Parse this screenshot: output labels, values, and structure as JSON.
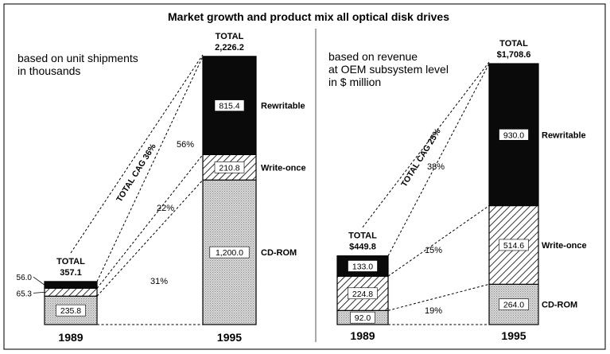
{
  "title": "Market growth and product mix all optical disk drives",
  "colors": {
    "rewritable": "#0a0a0a",
    "write_once_hatch": "#000000",
    "cdrom_dots": "#cfcfcf",
    "background": "#ffffff"
  },
  "chart_data": [
    {
      "type": "bar",
      "stacked": true,
      "note": "based on unit shipments in thousands",
      "note_lines": [
        "based on unit shipments",
        "in thousands"
      ],
      "categories": [
        "1989",
        "1995"
      ],
      "series": [
        {
          "name": "CD-ROM",
          "values": [
            235.8,
            1200.0
          ],
          "labels": [
            "235.8",
            "1,200.0"
          ]
        },
        {
          "name": "Write-once",
          "values": [
            65.3,
            210.8
          ],
          "labels": [
            "65.3",
            "210.8"
          ]
        },
        {
          "name": "Rewritable",
          "values": [
            56.0,
            815.4
          ],
          "labels": [
            "56.0",
            "815.4"
          ]
        }
      ],
      "totals": [
        357.1,
        2226.2
      ],
      "total_label": "TOTAL",
      "total_texts": [
        "357.1",
        "2,226.2"
      ],
      "growth_label": "TOTAL CAG 36%",
      "segment_growth": [
        {
          "series": "Rewritable",
          "label": "56%"
        },
        {
          "series": "Write-once",
          "label": "22%"
        },
        {
          "series": "CD-ROM",
          "label": "31%"
        }
      ]
    },
    {
      "type": "bar",
      "stacked": true,
      "note": "based on revenue at OEM subsystem level in $ million",
      "note_lines": [
        "based on revenue",
        "at OEM subsystem level",
        "in $ million"
      ],
      "categories": [
        "1989",
        "1995"
      ],
      "series": [
        {
          "name": "CD-ROM",
          "values": [
            92.0,
            264.0
          ],
          "labels": [
            "92.0",
            "264.0"
          ]
        },
        {
          "name": "Write-once",
          "values": [
            224.8,
            514.6
          ],
          "labels": [
            "224.8",
            "514.6"
          ]
        },
        {
          "name": "Rewritable",
          "values": [
            133.0,
            930.0
          ],
          "labels": [
            "133.0",
            "930.0"
          ]
        }
      ],
      "totals": [
        449.8,
        1708.6
      ],
      "total_label": "TOTAL",
      "total_texts": [
        "$449.8",
        "$1,708.6"
      ],
      "growth_label": "TOTAL CAG 25%",
      "segment_growth": [
        {
          "series": "Rewritable",
          "label": "38%"
        },
        {
          "series": "Write-once",
          "label": "15%"
        },
        {
          "series": "CD-ROM",
          "label": "19%"
        }
      ]
    }
  ]
}
